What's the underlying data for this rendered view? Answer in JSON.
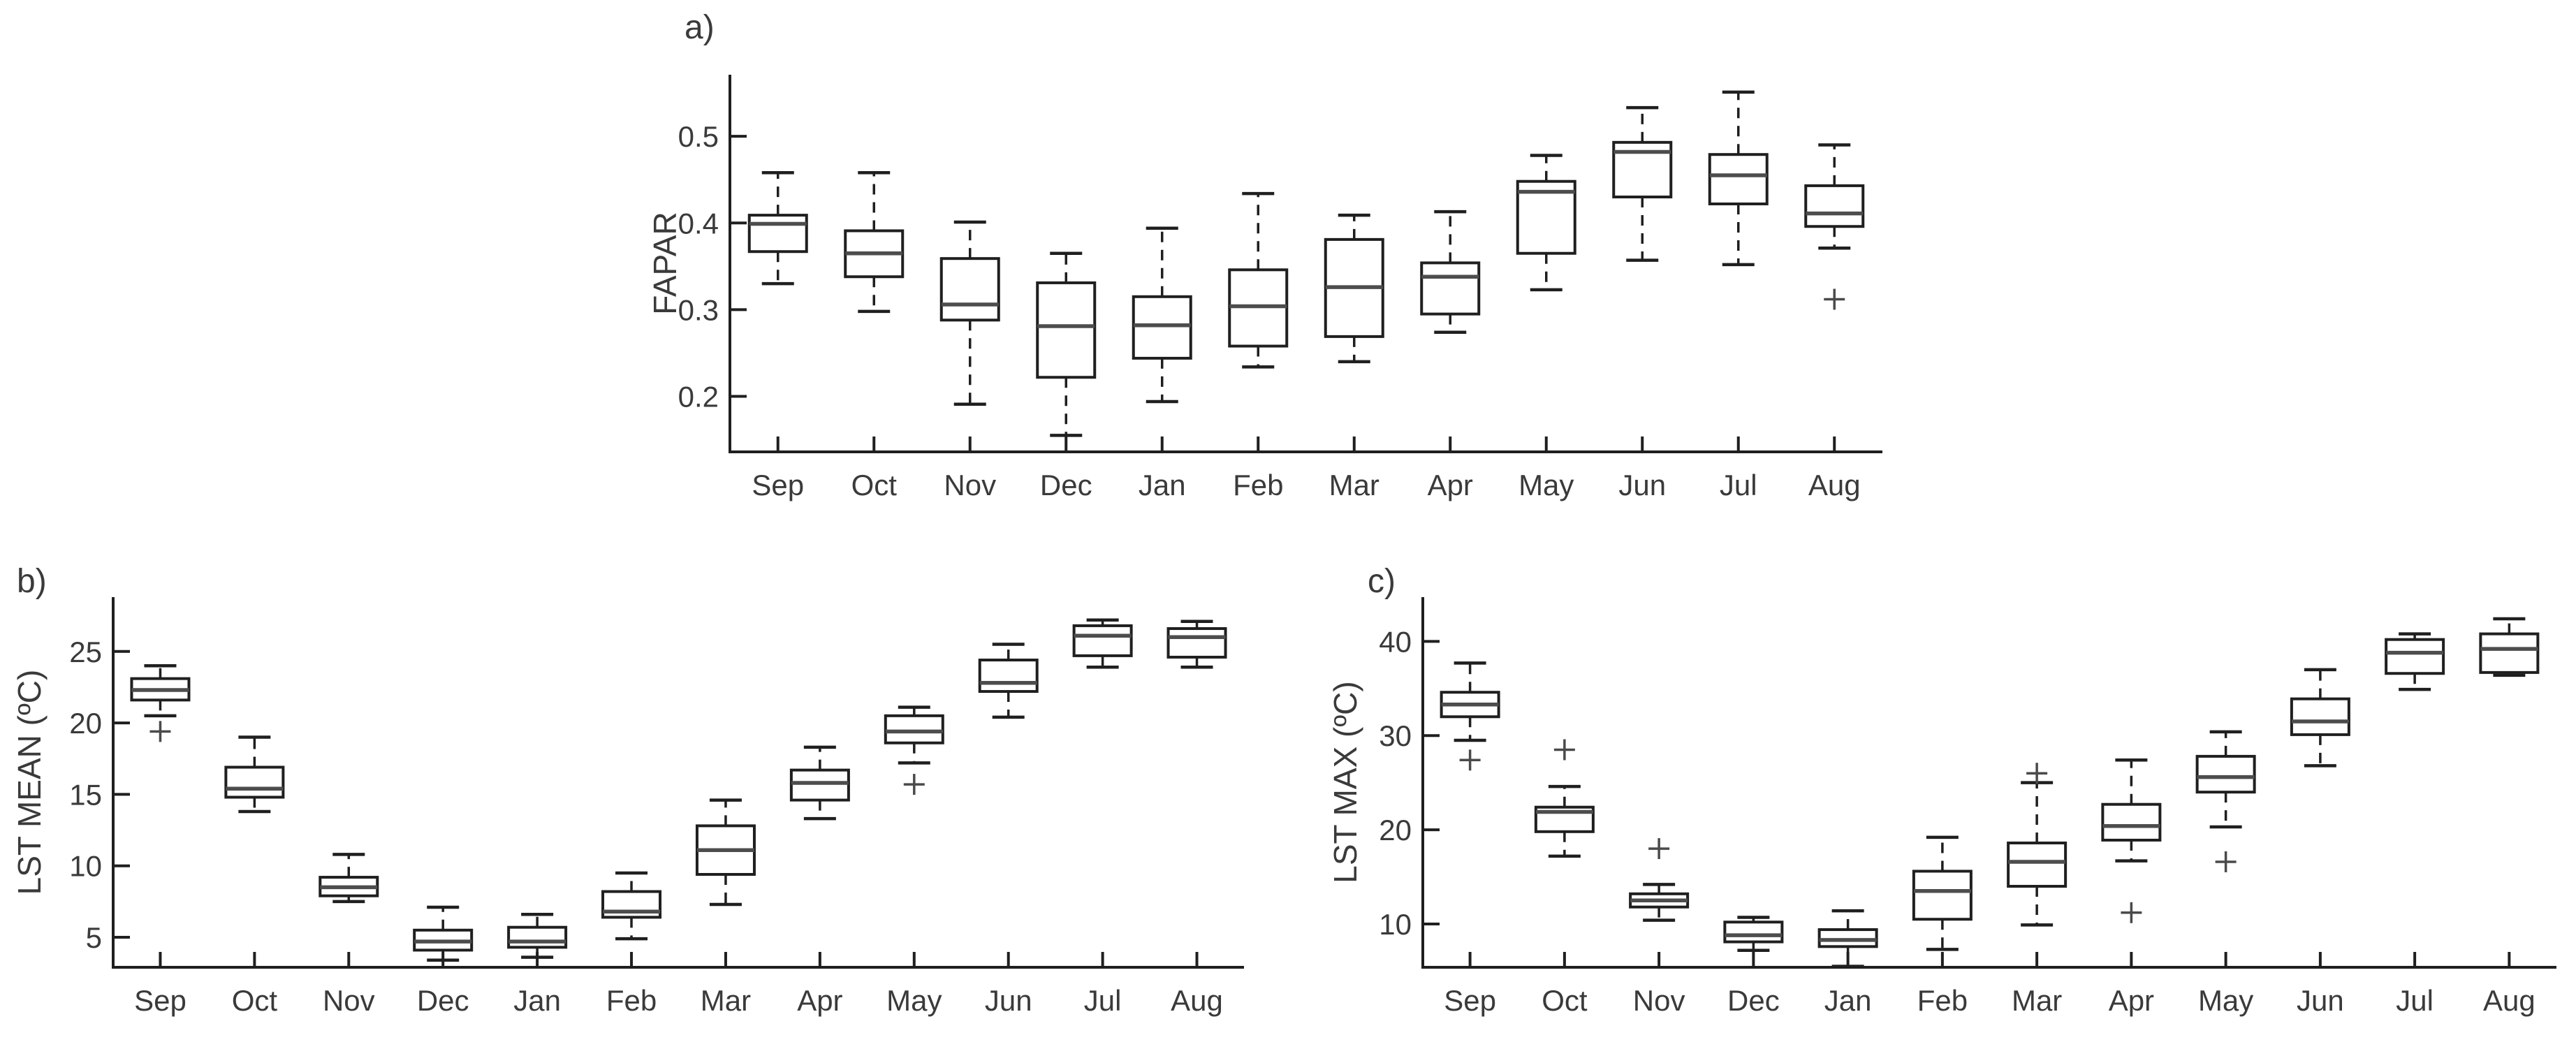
{
  "figure": {
    "background": "#ffffff",
    "line_color": "#1f1f1f",
    "median_color": "#4d4d4d",
    "outlier_color": "#4a4a4a",
    "text_color": "#3a3a3a",
    "months": [
      "Sep",
      "Oct",
      "Nov",
      "Dec",
      "Jan",
      "Feb",
      "Mar",
      "Apr",
      "May",
      "Jun",
      "Jul",
      "Aug"
    ]
  },
  "chart_data": [
    {
      "id": "a",
      "type": "boxplot",
      "panel_label": "a)",
      "ylabel": "FAPAR",
      "categories": [
        "Sep",
        "Oct",
        "Nov",
        "Dec",
        "Jan",
        "Feb",
        "Mar",
        "Apr",
        "May",
        "Jun",
        "Jul",
        "Aug"
      ],
      "yticks": [
        0.2,
        0.3,
        0.4,
        0.5
      ],
      "ytick_labels": [
        "0.2",
        "0.3",
        "0.4",
        "0.5"
      ],
      "ylim": [
        0.136,
        0.571
      ],
      "grid": false,
      "boxes": [
        {
          "whislo": 0.33,
          "q1": 0.367,
          "med": 0.399,
          "q3": 0.409,
          "whishi": 0.458,
          "outliers": []
        },
        {
          "whislo": 0.298,
          "q1": 0.338,
          "med": 0.365,
          "q3": 0.391,
          "whishi": 0.458,
          "outliers": []
        },
        {
          "whislo": 0.191,
          "q1": 0.288,
          "med": 0.306,
          "q3": 0.359,
          "whishi": 0.401,
          "outliers": []
        },
        {
          "whislo": 0.155,
          "q1": 0.222,
          "med": 0.281,
          "q3": 0.331,
          "whishi": 0.365,
          "outliers": []
        },
        {
          "whislo": 0.194,
          "q1": 0.244,
          "med": 0.282,
          "q3": 0.315,
          "whishi": 0.394,
          "outliers": []
        },
        {
          "whislo": 0.234,
          "q1": 0.258,
          "med": 0.304,
          "q3": 0.346,
          "whishi": 0.434,
          "outliers": []
        },
        {
          "whislo": 0.24,
          "q1": 0.269,
          "med": 0.326,
          "q3": 0.381,
          "whishi": 0.409,
          "outliers": []
        },
        {
          "whislo": 0.274,
          "q1": 0.295,
          "med": 0.338,
          "q3": 0.354,
          "whishi": 0.413,
          "outliers": []
        },
        {
          "whislo": 0.323,
          "q1": 0.365,
          "med": 0.436,
          "q3": 0.448,
          "whishi": 0.478,
          "outliers": []
        },
        {
          "whislo": 0.357,
          "q1": 0.43,
          "med": 0.482,
          "q3": 0.493,
          "whishi": 0.533,
          "outliers": []
        },
        {
          "whislo": 0.352,
          "q1": 0.422,
          "med": 0.455,
          "q3": 0.479,
          "whishi": 0.551,
          "outliers": []
        },
        {
          "whislo": 0.371,
          "q1": 0.396,
          "med": 0.411,
          "q3": 0.443,
          "whishi": 0.49,
          "outliers": [
            0.312
          ]
        }
      ]
    },
    {
      "id": "b",
      "type": "boxplot",
      "panel_label": "b)",
      "ylabel": "LST MEAN (ºC)",
      "categories": [
        "Sep",
        "Oct",
        "Nov",
        "Dec",
        "Jan",
        "Feb",
        "Mar",
        "Apr",
        "May",
        "Jun",
        "Jul",
        "Aug"
      ],
      "yticks": [
        5,
        10,
        15,
        20,
        25
      ],
      "ytick_labels": [
        "5",
        "10",
        "15",
        "20",
        "25"
      ],
      "ylim": [
        2.9,
        28.8
      ],
      "grid": false,
      "boxes": [
        {
          "whislo": 20.5,
          "q1": 21.6,
          "med": 22.3,
          "q3": 23.1,
          "whishi": 24.0,
          "outliers": [
            19.4
          ]
        },
        {
          "whislo": 13.8,
          "q1": 14.8,
          "med": 15.4,
          "q3": 16.9,
          "whishi": 19.0,
          "outliers": []
        },
        {
          "whislo": 7.5,
          "q1": 7.9,
          "med": 8.5,
          "q3": 9.2,
          "whishi": 10.8,
          "outliers": []
        },
        {
          "whislo": 3.4,
          "q1": 4.1,
          "med": 4.7,
          "q3": 5.5,
          "whishi": 7.1,
          "outliers": []
        },
        {
          "whislo": 3.6,
          "q1": 4.3,
          "med": 4.7,
          "q3": 5.7,
          "whishi": 6.6,
          "outliers": []
        },
        {
          "whislo": 4.9,
          "q1": 6.4,
          "med": 6.8,
          "q3": 8.2,
          "whishi": 9.5,
          "outliers": []
        },
        {
          "whislo": 7.3,
          "q1": 9.4,
          "med": 11.1,
          "q3": 12.8,
          "whishi": 14.6,
          "outliers": []
        },
        {
          "whislo": 13.3,
          "q1": 14.6,
          "med": 15.8,
          "q3": 16.7,
          "whishi": 18.3,
          "outliers": []
        },
        {
          "whislo": 17.2,
          "q1": 18.6,
          "med": 19.4,
          "q3": 20.5,
          "whishi": 21.1,
          "outliers": [
            15.7
          ]
        },
        {
          "whislo": 20.4,
          "q1": 22.2,
          "med": 22.8,
          "q3": 24.4,
          "whishi": 25.5,
          "outliers": []
        },
        {
          "whislo": 23.9,
          "q1": 24.7,
          "med": 26.1,
          "q3": 26.8,
          "whishi": 27.2,
          "outliers": []
        },
        {
          "whislo": 23.9,
          "q1": 24.6,
          "med": 26.0,
          "q3": 26.6,
          "whishi": 27.1,
          "outliers": []
        }
      ]
    },
    {
      "id": "c",
      "type": "boxplot",
      "panel_label": "c)",
      "ylabel": "LST MAX (ºC)",
      "categories": [
        "Sep",
        "Oct",
        "Nov",
        "Dec",
        "Jan",
        "Feb",
        "Mar",
        "Apr",
        "May",
        "Jun",
        "Jul",
        "Aug"
      ],
      "yticks": [
        10,
        20,
        30,
        40
      ],
      "ytick_labels": [
        "10",
        "20",
        "30",
        "40"
      ],
      "ylim": [
        5.4,
        44.7
      ],
      "grid": false,
      "boxes": [
        {
          "whislo": 29.5,
          "q1": 32.0,
          "med": 33.3,
          "q3": 34.6,
          "whishi": 37.7,
          "outliers": [
            27.4
          ]
        },
        {
          "whislo": 17.2,
          "q1": 19.8,
          "med": 21.9,
          "q3": 22.4,
          "whishi": 24.6,
          "outliers": [
            28.5
          ]
        },
        {
          "whislo": 10.4,
          "q1": 11.8,
          "med": 12.5,
          "q3": 13.2,
          "whishi": 14.2,
          "outliers": [
            18.0
          ]
        },
        {
          "whislo": 7.2,
          "q1": 8.1,
          "med": 8.8,
          "q3": 10.2,
          "whishi": 10.7,
          "outliers": []
        },
        {
          "whislo": 5.5,
          "q1": 7.6,
          "med": 8.3,
          "q3": 9.4,
          "whishi": 11.4,
          "outliers": []
        },
        {
          "whislo": 7.3,
          "q1": 10.5,
          "med": 13.5,
          "q3": 15.6,
          "whishi": 19.2,
          "outliers": []
        },
        {
          "whislo": 9.9,
          "q1": 14.0,
          "med": 16.6,
          "q3": 18.6,
          "whishi": 25.0,
          "outliers": [
            26.0
          ]
        },
        {
          "whislo": 16.7,
          "q1": 18.9,
          "med": 20.4,
          "q3": 22.7,
          "whishi": 27.4,
          "outliers": [
            11.2
          ]
        },
        {
          "whislo": 20.3,
          "q1": 24.0,
          "med": 25.6,
          "q3": 27.8,
          "whishi": 30.4,
          "outliers": [
            16.6
          ]
        },
        {
          "whislo": 26.8,
          "q1": 30.1,
          "med": 31.5,
          "q3": 33.9,
          "whishi": 37.0,
          "outliers": []
        },
        {
          "whislo": 34.9,
          "q1": 36.6,
          "med": 38.8,
          "q3": 40.2,
          "whishi": 40.8,
          "outliers": []
        },
        {
          "whislo": 36.4,
          "q1": 36.7,
          "med": 39.2,
          "q3": 40.8,
          "whishi": 42.4,
          "outliers": []
        }
      ]
    }
  ]
}
